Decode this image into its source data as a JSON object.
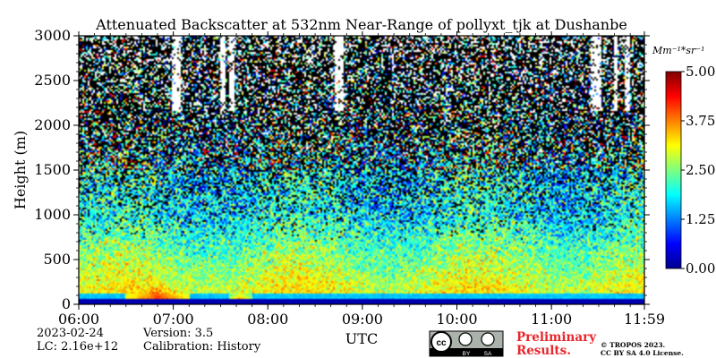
{
  "chart_data": {
    "type": "heatmap",
    "title": "Attenuated Backscatter at 532nm Near-Range of pollyxt_tjk at Dushanbe",
    "xlabel": "UTC",
    "ylabel": "Height (m)",
    "x_ticks": [
      "06:00",
      "07:00",
      "08:00",
      "09:00",
      "10:00",
      "11:00",
      "11:59"
    ],
    "y_ticks": [
      0,
      500,
      1000,
      1500,
      2000,
      2500,
      3000
    ],
    "ylim": [
      0,
      3000
    ],
    "xlim": [
      "06:00",
      "11:59"
    ],
    "colorbar": {
      "label": "Mm⁻¹*sr⁻¹",
      "ticks": [
        "0.00",
        "1.25",
        "2.50",
        "3.75",
        "5.00"
      ],
      "range": [
        0,
        5
      ],
      "colormap": "jet"
    },
    "features": [
      {
        "description": "Enhanced backscatter aerosol layer near surface",
        "x_start": "06:30",
        "x_end": "07:10",
        "height_max_m": 500,
        "value_approx": 4.5
      },
      {
        "description": "Enhanced backscatter near surface",
        "x_start": "07:35",
        "x_end": "07:50",
        "height_max_m": 200,
        "value_approx": 4.5
      },
      {
        "description": "Low blind zone with low signal",
        "height_range_m": [
          0,
          100
        ],
        "value_approx": 0.2
      }
    ],
    "notes": [
      "Noise with random pixels increasing above 1000 m",
      "Cloud/saturation streaks near 07:10, 09:20 and 11:30-11:55 between 2200 and 3000 m"
    ]
  },
  "footer": {
    "date": "2023-02-24",
    "lc": "LC: 2.16e+12",
    "version": "Version: 3.5",
    "calibration": "Calibration: History",
    "preliminary_line1": "Preliminary",
    "preliminary_line2": "Results.",
    "copyright_line1": "© TROPOS 2023.",
    "copyright_line2": "CC BY SA 4.0 License.",
    "license_badge": [
      "cc",
      "BY",
      "SA"
    ]
  }
}
